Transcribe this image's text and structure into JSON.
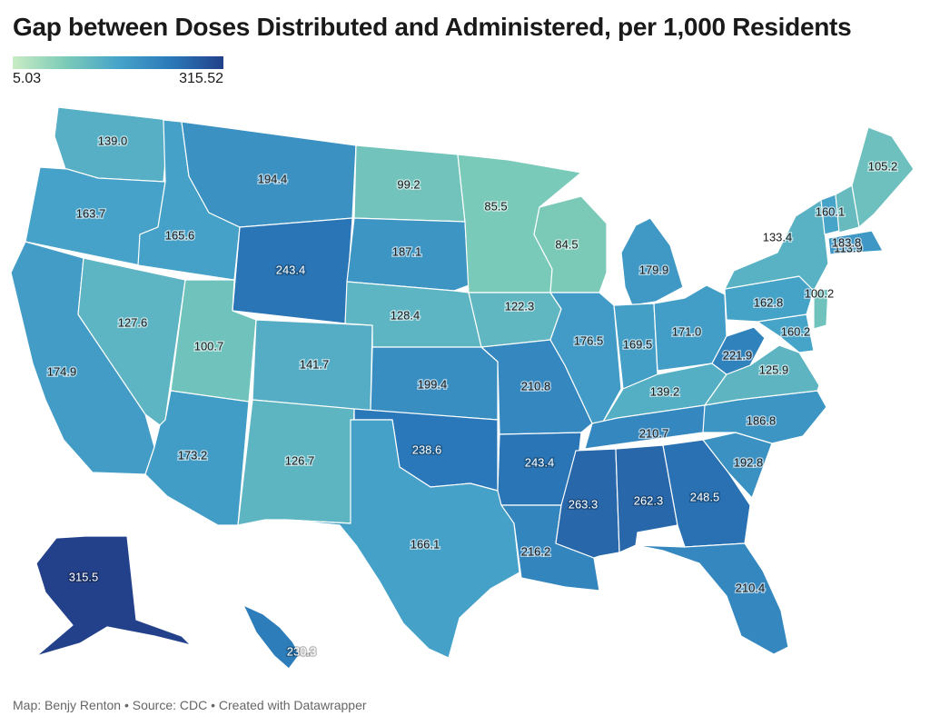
{
  "title": "Gap between Doses Distributed and Administered, per 1,000 Residents",
  "legend": {
    "min_label": "5.03",
    "max_label": "315.52",
    "min": 5.03,
    "max": 315.52
  },
  "footer": "Map: Benjy Renton • Source: CDC • Created with Datawrapper",
  "map_data": {
    "type": "choropleth",
    "color_scale": [
      "#c9ecc4",
      "#7ccbb8",
      "#47a4c9",
      "#2a79b9",
      "#22418a"
    ],
    "states": [
      {
        "code": "WA",
        "value": "139.0"
      },
      {
        "code": "OR",
        "value": "163.7"
      },
      {
        "code": "CA",
        "value": "174.9"
      },
      {
        "code": "NV",
        "value": "127.6"
      },
      {
        "code": "ID",
        "value": "165.6"
      },
      {
        "code": "MT",
        "value": "194.4"
      },
      {
        "code": "WY",
        "value": "243.4"
      },
      {
        "code": "UT",
        "value": "100.7"
      },
      {
        "code": "AZ",
        "value": "173.2"
      },
      {
        "code": "CO",
        "value": "141.7"
      },
      {
        "code": "NM",
        "value": "126.7"
      },
      {
        "code": "ND",
        "value": "99.2"
      },
      {
        "code": "SD",
        "value": "187.1"
      },
      {
        "code": "NE",
        "value": "128.4"
      },
      {
        "code": "KS",
        "value": "199.4"
      },
      {
        "code": "OK",
        "value": "238.6"
      },
      {
        "code": "TX",
        "value": "166.1"
      },
      {
        "code": "MN",
        "value": "85.5"
      },
      {
        "code": "IA",
        "value": "122.3"
      },
      {
        "code": "MO",
        "value": "210.8"
      },
      {
        "code": "AR",
        "value": "243.4"
      },
      {
        "code": "LA",
        "value": "216.2"
      },
      {
        "code": "WI",
        "value": "84.5"
      },
      {
        "code": "IL",
        "value": "176.5"
      },
      {
        "code": "MI",
        "value": "179.9"
      },
      {
        "code": "IN",
        "value": "169.5"
      },
      {
        "code": "OH",
        "value": "171.0"
      },
      {
        "code": "KY",
        "value": "139.2"
      },
      {
        "code": "TN",
        "value": "210.7"
      },
      {
        "code": "MS",
        "value": "263.3"
      },
      {
        "code": "AL",
        "value": "262.3"
      },
      {
        "code": "GA",
        "value": "248.5"
      },
      {
        "code": "FL",
        "value": "210.4"
      },
      {
        "code": "SC",
        "value": "192.8"
      },
      {
        "code": "NC",
        "value": "186.8"
      },
      {
        "code": "VA",
        "value": "125.9"
      },
      {
        "code": "WV",
        "value": "221.9"
      },
      {
        "code": "MD",
        "value": "160.2"
      },
      {
        "code": "PA",
        "value": "162.8"
      },
      {
        "code": "NY",
        "value": "133.4"
      },
      {
        "code": "NJ",
        "value": "100.2"
      },
      {
        "code": "VT",
        "value": "160.1"
      },
      {
        "code": "NH",
        "value": "113.9"
      },
      {
        "code": "MA",
        "value": "183.8"
      },
      {
        "code": "ME",
        "value": "105.2"
      },
      {
        "code": "AK",
        "value": "315.5"
      },
      {
        "code": "HI",
        "value": "230.3"
      }
    ]
  }
}
